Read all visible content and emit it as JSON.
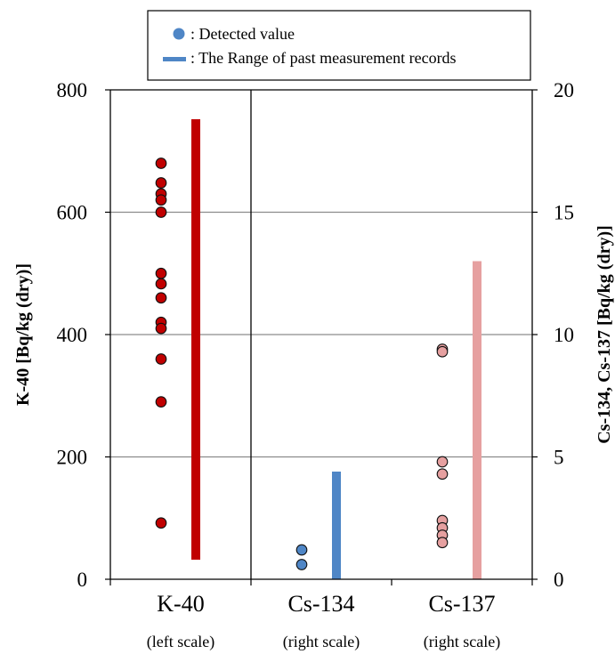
{
  "chart_data": {
    "type": "scatter",
    "legend": {
      "placement": "top-center",
      "detected_label": ": Detected value",
      "range_label": ": The Range of past measurement records",
      "marker_color": "#4f86c6"
    },
    "y_left": {
      "label": "K-40 [Bq/kg (dry)]",
      "range": [
        0,
        800
      ],
      "ticks": [
        "0",
        "200",
        "400",
        "600",
        "800"
      ]
    },
    "y_right": {
      "label": "Cs-134, Cs-137 [Bq/kg (dry)]",
      "range": [
        0,
        20
      ],
      "ticks": [
        "0",
        "5",
        "10",
        "15",
        "20"
      ]
    },
    "grid": true,
    "categories": [
      {
        "name": "K-40",
        "scale_note": "(left scale)",
        "axis": "left",
        "color": "#c00000",
        "range": [
          32,
          752
        ],
        "detected": [
          680,
          648,
          630,
          620,
          600,
          500,
          483,
          460,
          420,
          410,
          360,
          290,
          92
        ]
      },
      {
        "name": "Cs-134",
        "scale_note": "(right scale)",
        "axis": "right",
        "color": "#4f86c6",
        "range": [
          0,
          4.4
        ],
        "detected": [
          1.2,
          0.6
        ]
      },
      {
        "name": "Cs-137",
        "scale_note": "(right scale)",
        "axis": "right",
        "color": "#e6a0a0",
        "range": [
          0,
          13
        ],
        "detected": [
          9.4,
          9.3,
          4.8,
          4.3,
          2.4,
          2.1,
          1.8,
          1.5
        ]
      }
    ]
  }
}
